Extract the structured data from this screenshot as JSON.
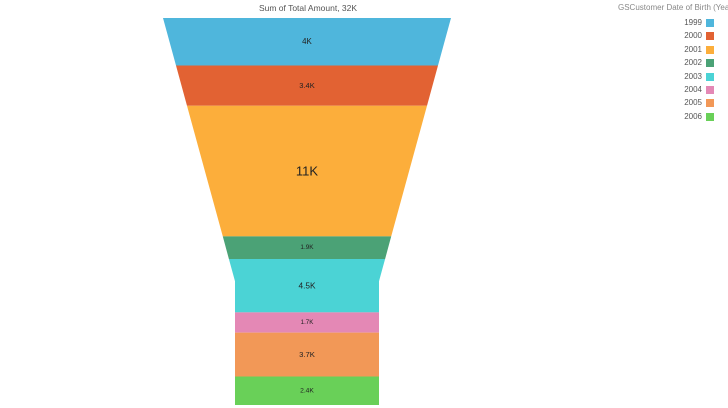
{
  "chart_data": {
    "type": "funnel",
    "title": "Sum of Total Amount, 32K",
    "legend_title": "GSCustomer Date of Birth (Year)",
    "legend_position": "top-right",
    "categories": [
      "1999",
      "2000",
      "2001",
      "2002",
      "2003",
      "2004",
      "2005",
      "2006"
    ],
    "values": [
      4000,
      3400,
      11000,
      1900,
      4500,
      1700,
      3700,
      2400
    ],
    "labels": [
      "4K",
      "3.4K",
      "11K",
      "1.9K",
      "4.5K",
      "1.7K",
      "3.7K",
      "2.4K"
    ],
    "colors": [
      "#4fb6dc",
      "#e26233",
      "#fcae3b",
      "#4ba276",
      "#4bd3d5",
      "#e488b5",
      "#f29857",
      "#69d058"
    ]
  }
}
